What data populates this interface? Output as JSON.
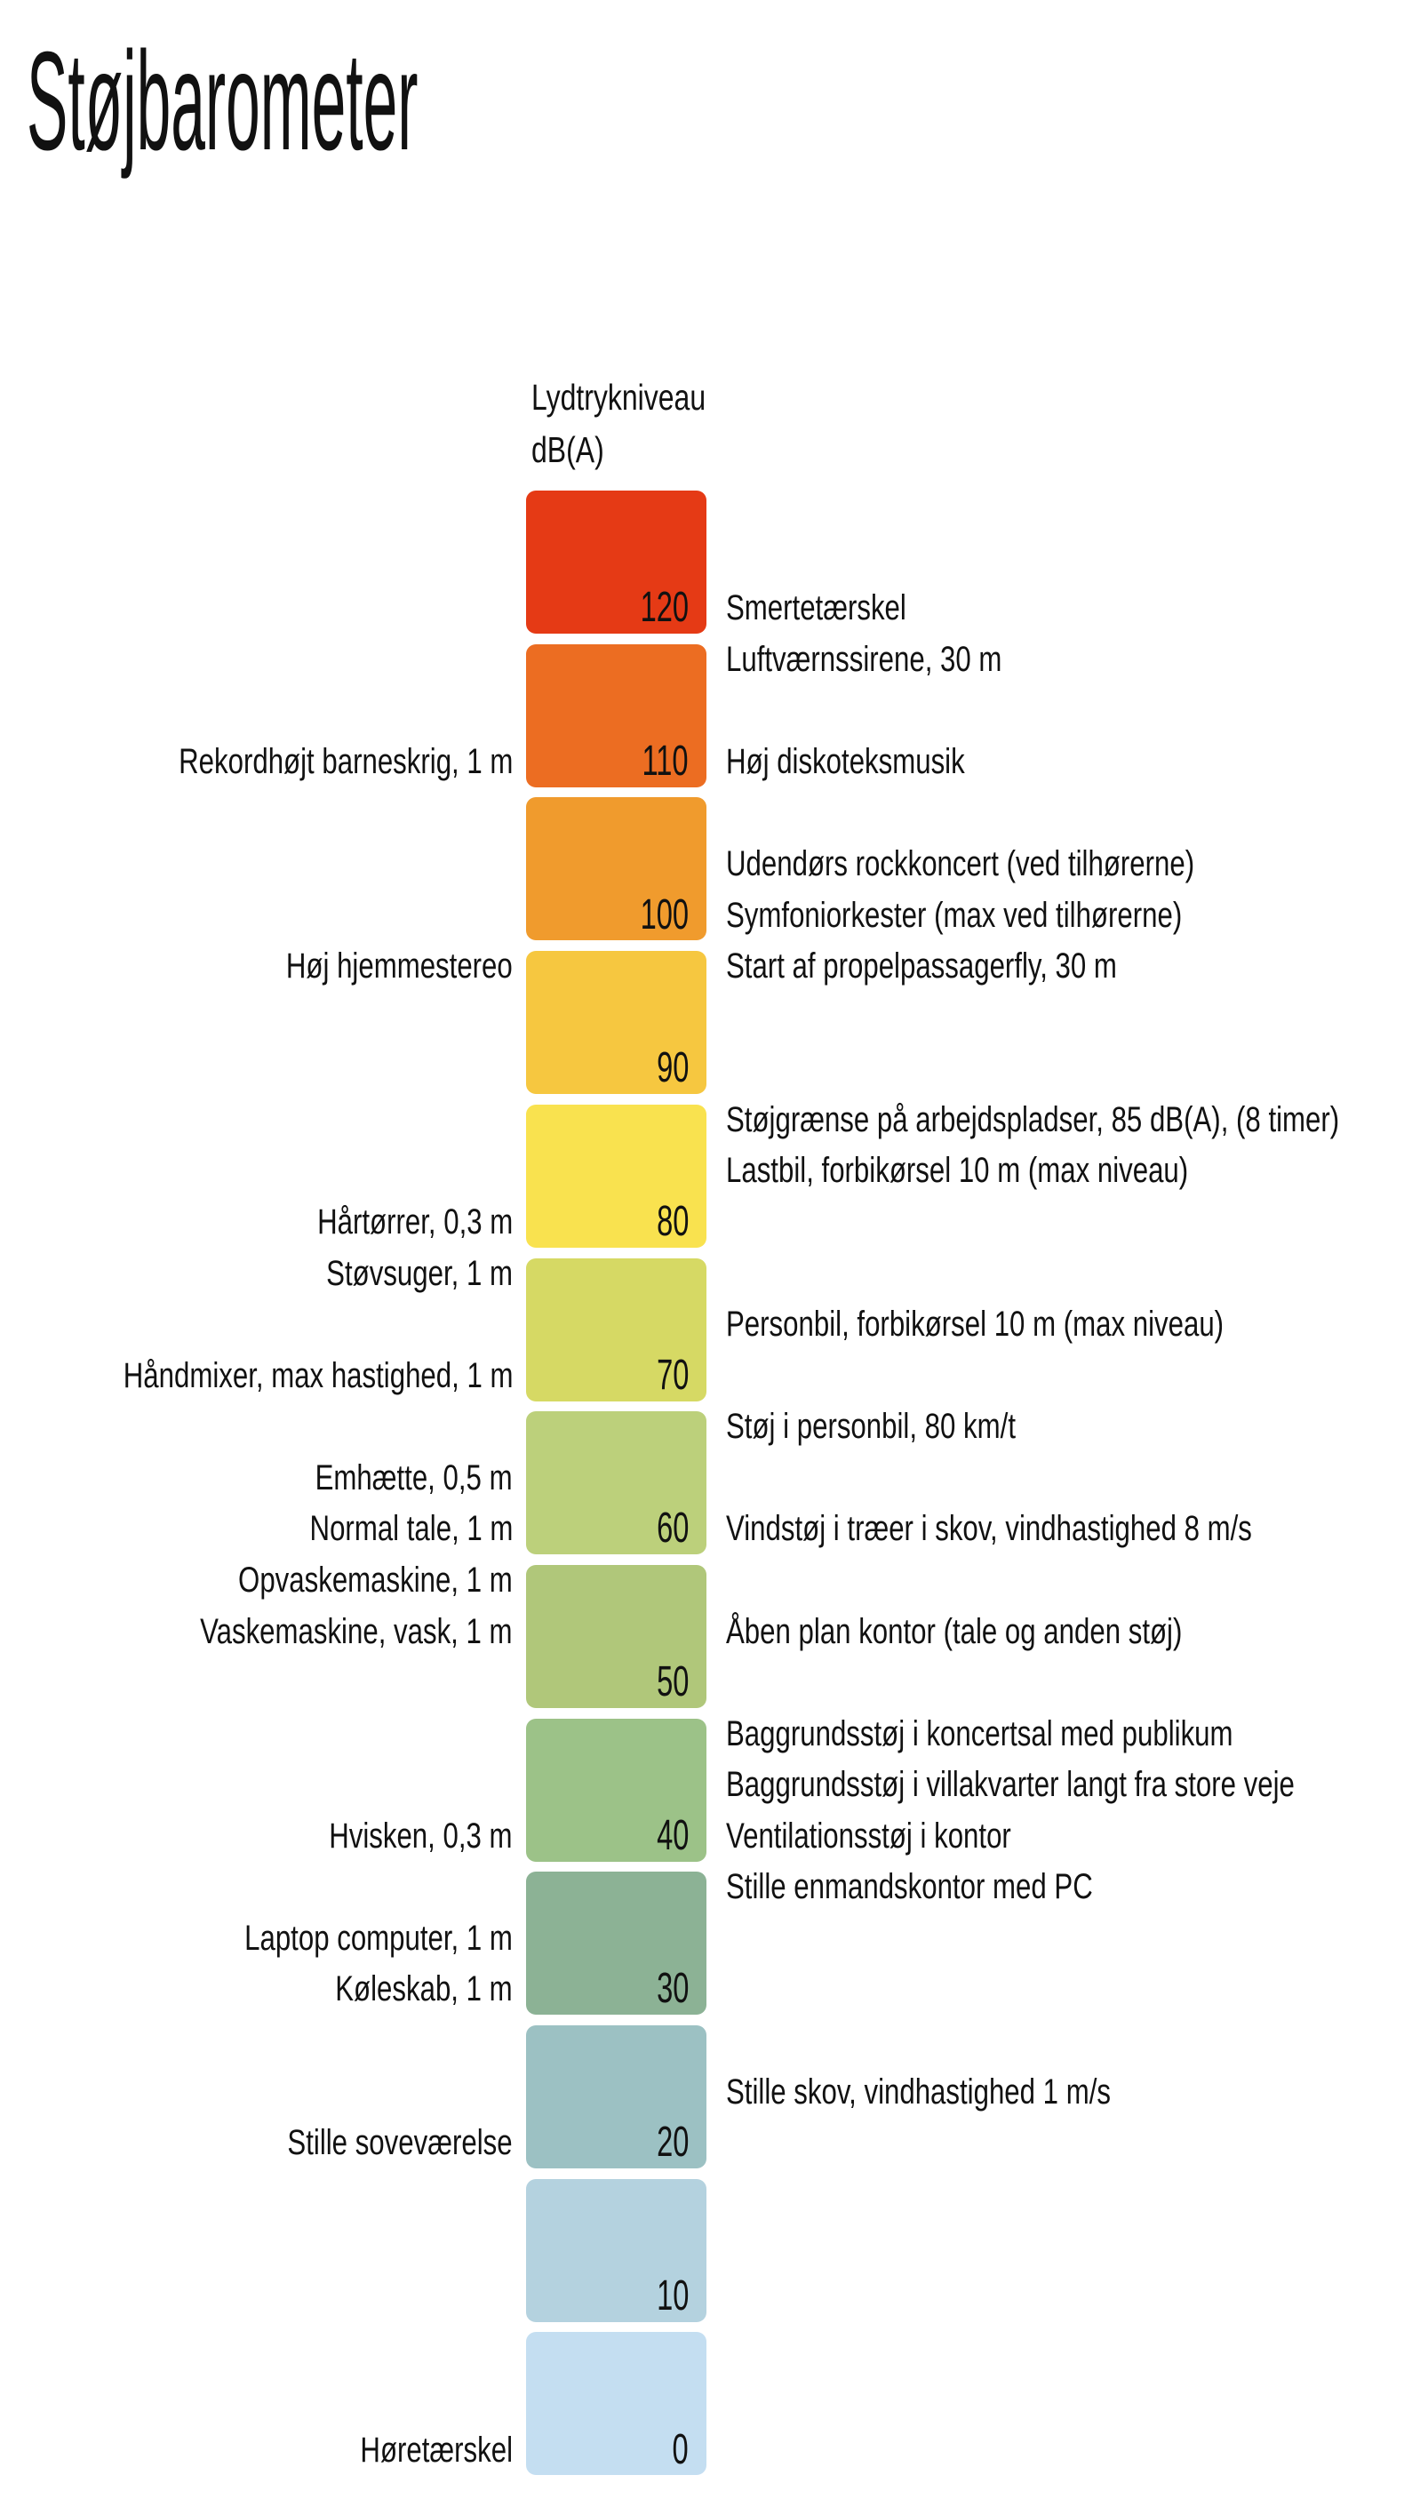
{
  "page": {
    "background": "#ffffff",
    "text_color": "#111111"
  },
  "chart_data": {
    "type": "bar",
    "title": "Støjbarometer",
    "ylabel": "Lydtrykniveau dB(A)",
    "ylabel_lines": [
      "Lydtrykniveau",
      "dB(A)"
    ],
    "xlabel": "",
    "ylim": [
      0,
      120
    ],
    "unit": "dB(A)",
    "grid": false,
    "legend_position": "none",
    "orientation": "vertical-scale",
    "categories": [
      "120",
      "110",
      "100",
      "90",
      "80",
      "70",
      "60",
      "50",
      "40",
      "30",
      "20",
      "10",
      "0"
    ],
    "values": [
      120,
      110,
      100,
      90,
      80,
      70,
      60,
      50,
      40,
      30,
      20,
      10,
      0
    ],
    "levels": [
      {
        "db": "120",
        "color": "#e53a15",
        "left_labels": [],
        "right_labels": [
          {
            "slot": 2,
            "text": "Smertetærskel"
          }
        ]
      },
      {
        "db": "110",
        "color": "#ec6d22",
        "left_labels": [
          {
            "slot": 2,
            "text": "Rekordhøjt barneskrig, 1 m"
          }
        ],
        "right_labels": [
          {
            "slot": 0,
            "text": "Luftværnssirene, 30 m"
          },
          {
            "slot": 2,
            "text": "Høj diskoteksmusik"
          }
        ]
      },
      {
        "db": "100",
        "color": "#f09b2d",
        "left_labels": [],
        "right_labels": [
          {
            "slot": 1,
            "text": "Udendørs rockkoncert (ved tilhørerne)"
          },
          {
            "slot": 2,
            "text": "Symfoniorkester (max ved tilhørerne)"
          }
        ]
      },
      {
        "db": "90",
        "color": "#f6c740",
        "left_labels": [
          {
            "slot": 0,
            "text": "Høj hjemmestereo"
          }
        ],
        "right_labels": [
          {
            "slot": 0,
            "text": "Start af propelpassagerfly, 30 m"
          }
        ]
      },
      {
        "db": "80",
        "color": "#f9e24f",
        "left_labels": [
          {
            "slot": 2,
            "text": "Hårtørrer, 0,3 m"
          }
        ],
        "right_labels": [
          {
            "slot": 0,
            "text": "Støjgrænse på arbejdspladser, 85 dB(A), (8 timer)"
          },
          {
            "slot": 1,
            "text": "Lastbil, forbikørsel 10 m (max niveau)"
          }
        ]
      },
      {
        "db": "70",
        "color": "#d6d964",
        "left_labels": [
          {
            "slot": 0,
            "text": "Støvsuger, 1 m"
          },
          {
            "slot": 2,
            "text": "Håndmixer, max hastighed, 1 m"
          }
        ],
        "right_labels": [
          {
            "slot": 1,
            "text": "Personbil, forbikørsel 10 m (max niveau)"
          }
        ]
      },
      {
        "db": "60",
        "color": "#bcd07b",
        "left_labels": [
          {
            "slot": 1,
            "text": "Emhætte, 0,5 m"
          },
          {
            "slot": 2,
            "text": "Normal tale, 1 m"
          }
        ],
        "right_labels": [
          {
            "slot": 0,
            "text": "Støj i personbil, 80 km/t"
          },
          {
            "slot": 2,
            "text": "Vindstøj i træer i skov, vindhastighed 8 m/s"
          }
        ]
      },
      {
        "db": "50",
        "color": "#b0c77a",
        "left_labels": [
          {
            "slot": 0,
            "text": "Opvaskemaskine, 1 m"
          },
          {
            "slot": 1,
            "text": "Vaskemaskine, vask, 1 m"
          }
        ],
        "right_labels": [
          {
            "slot": 1,
            "text": "Åben plan kontor (tale og anden støj)"
          }
        ]
      },
      {
        "db": "40",
        "color": "#9cc288",
        "left_labels": [
          {
            "slot": 2,
            "text": "Hvisken, 0,3 m"
          }
        ],
        "right_labels": [
          {
            "slot": 0,
            "text": "Baggrundsstøj i koncertsal med publikum"
          },
          {
            "slot": 1,
            "text": "Baggrundsstøj i villakvarter langt fra store veje"
          },
          {
            "slot": 2,
            "text": "Ventilationsstøj i kontor"
          }
        ]
      },
      {
        "db": "30",
        "color": "#8cb295",
        "left_labels": [
          {
            "slot": 1,
            "text": "Laptop computer, 1 m"
          },
          {
            "slot": 2,
            "text": "Køleskab, 1 m"
          }
        ],
        "right_labels": [
          {
            "slot": 0,
            "text": "Stille enmandskontor med PC"
          }
        ]
      },
      {
        "db": "20",
        "color": "#9cc1c3",
        "left_labels": [
          {
            "slot": 2,
            "text": "Stille soveværelse"
          }
        ],
        "right_labels": [
          {
            "slot": 1,
            "text": "Stille skov, vindhastighed 1 m/s"
          }
        ]
      },
      {
        "db": "10",
        "color": "#b4d2df",
        "left_labels": [],
        "right_labels": []
      },
      {
        "db": "0",
        "color": "#c4def1",
        "left_labels": [
          {
            "slot": 2,
            "text": "Høretærskel"
          }
        ],
        "right_labels": []
      }
    ]
  }
}
